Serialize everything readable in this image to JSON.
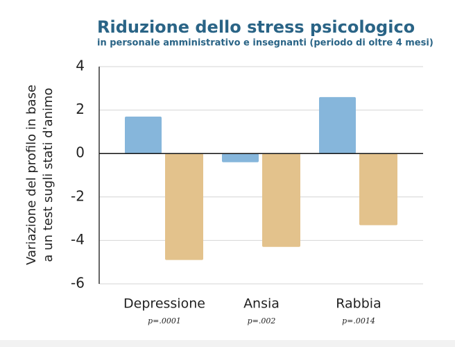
{
  "chart_data": {
    "type": "bar",
    "title": "Riduzione dello stress psicologico",
    "subtitle": "in personale amministrativo e insegnanti  (periodo di oltre 4 mesi)",
    "y_label": [
      "Variazione del profilo in base",
      "a un test sugli stati d'animo"
    ],
    "categories": [
      "Depressione",
      "Ansia",
      "Rabbia"
    ],
    "annotations": [
      "p=.0001",
      "p=.002",
      "p=.0014"
    ],
    "series": [
      {
        "color": "#86b6db",
        "values": [
          1.7,
          -0.4,
          2.6
        ]
      },
      {
        "color": "#e3c28c",
        "values": [
          -4.9,
          -4.3,
          -3.3
        ]
      }
    ],
    "ylim": [
      -6,
      4
    ],
    "yticks": [
      -6,
      -4,
      -2,
      0,
      2,
      4
    ],
    "grid": true
  }
}
